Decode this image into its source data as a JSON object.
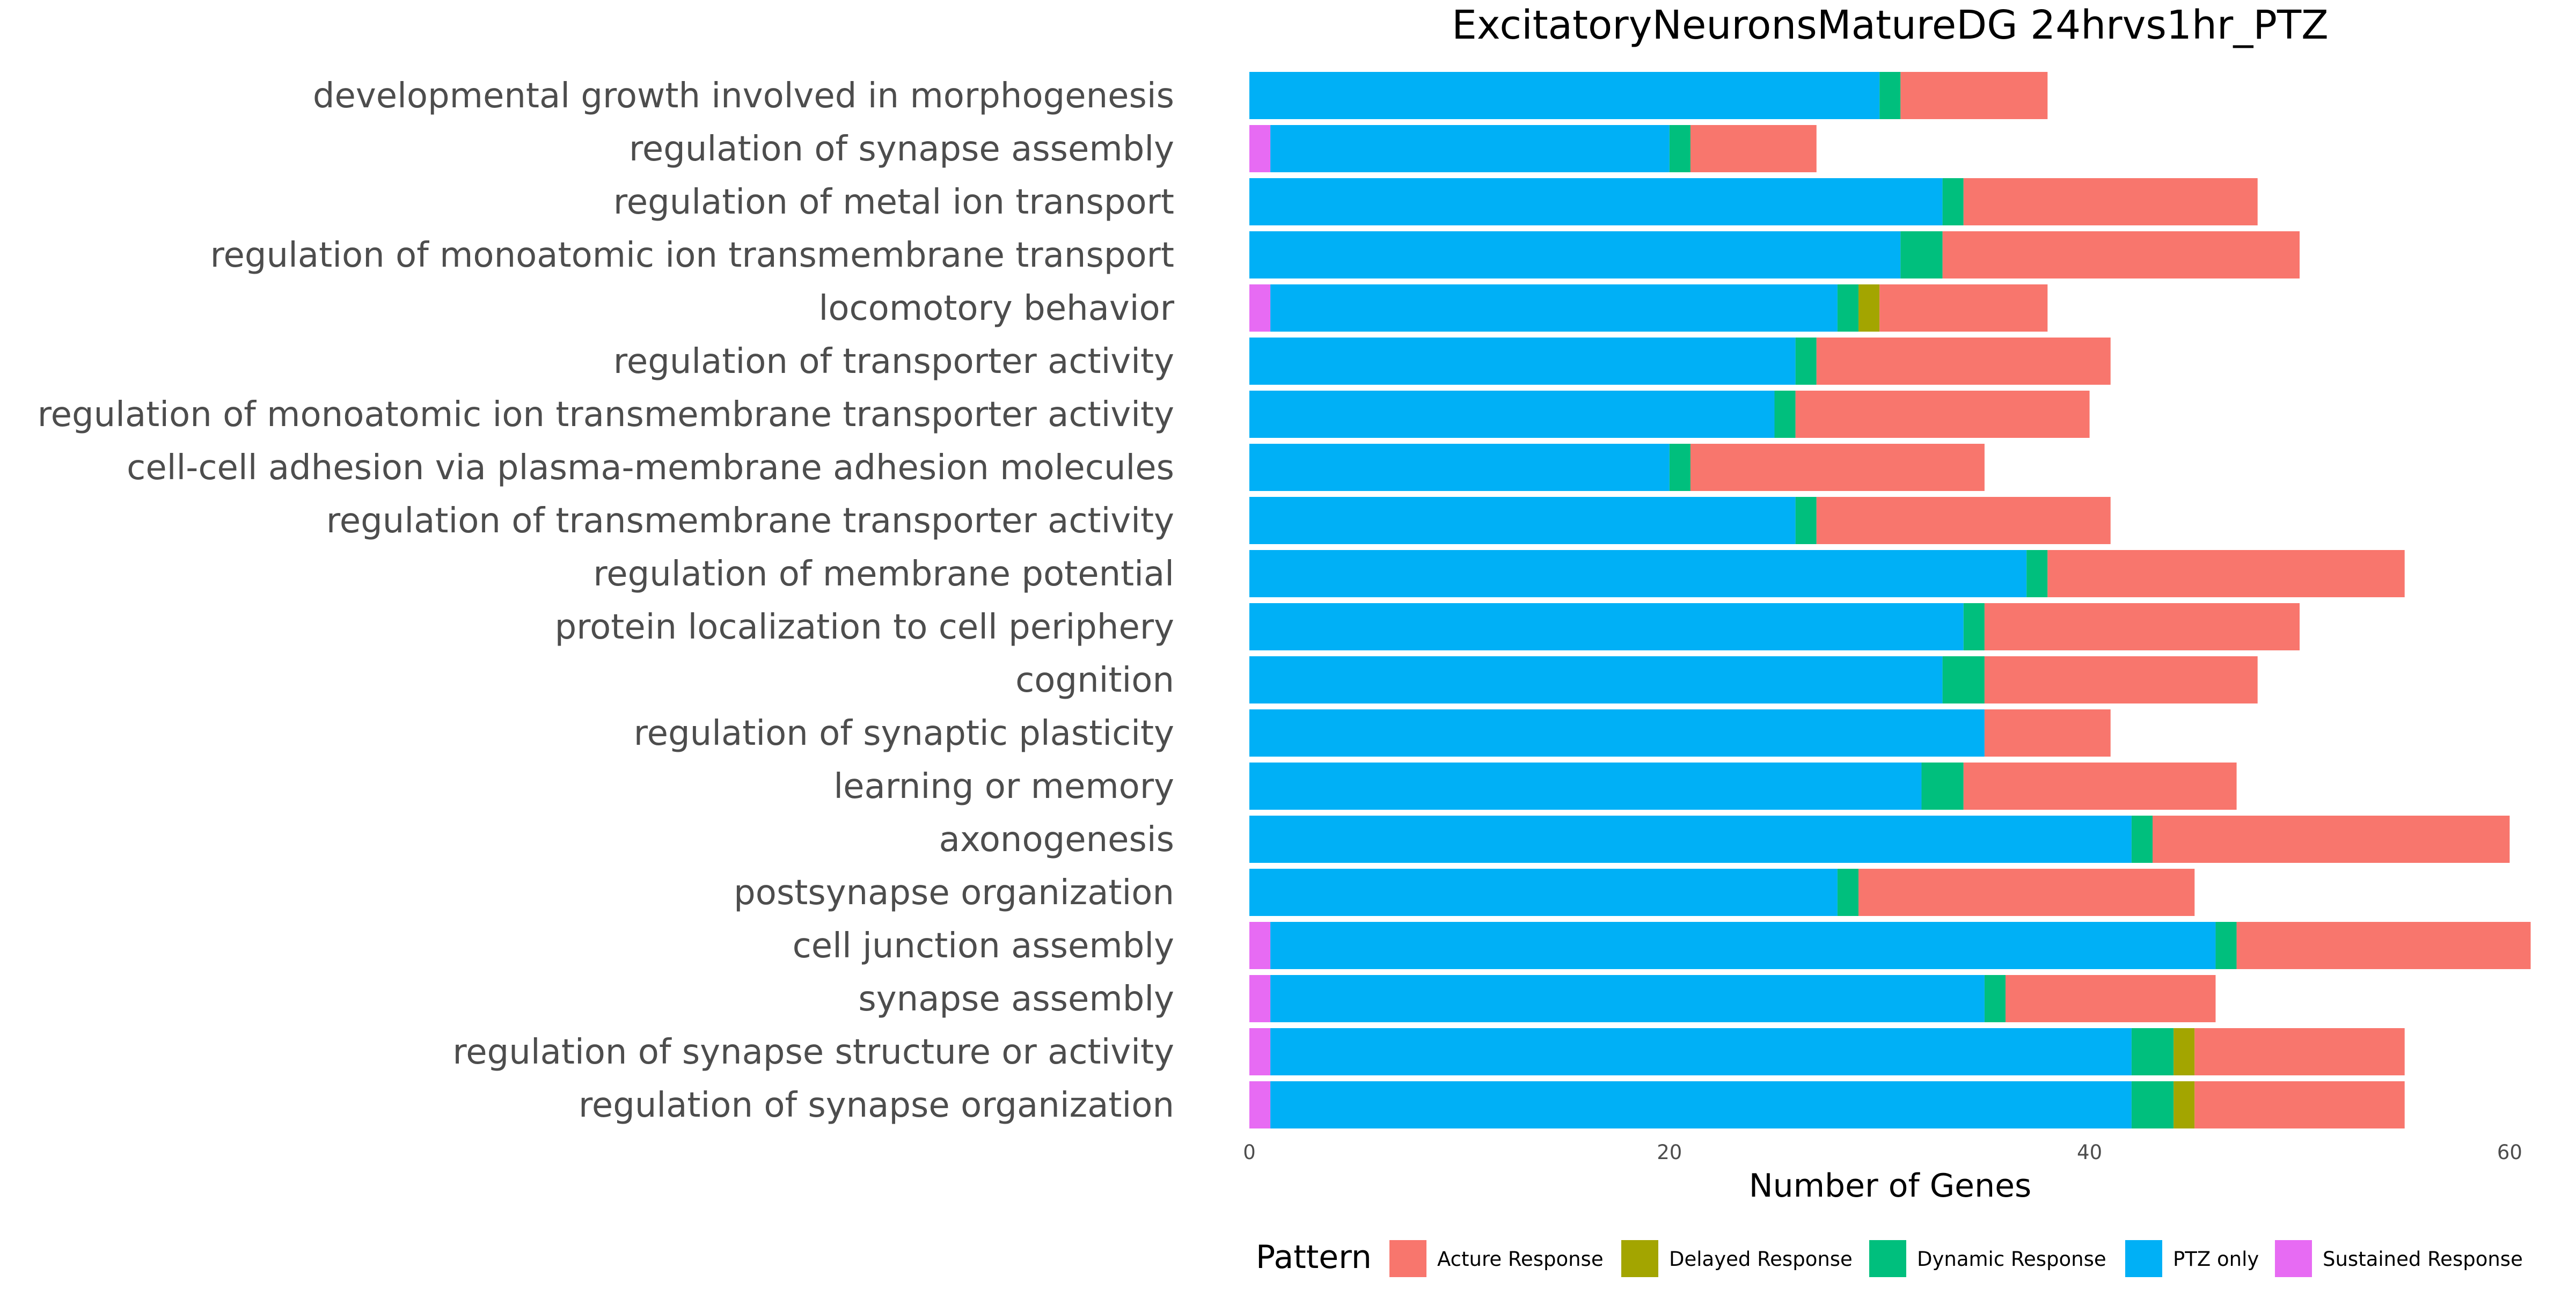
{
  "chart_data": {
    "type": "bar",
    "orientation": "horizontal",
    "stacked": true,
    "title": "ExcitatoryNeuronsMatureDG 24hrvs1hr_PTZ",
    "xlabel": "Number of Genes",
    "ylabel": "",
    "xlim": [
      0,
      61
    ],
    "x_ticks": [
      0,
      20,
      40,
      60
    ],
    "grid": false,
    "legend_position": "bottom",
    "legend_title": "Pattern",
    "categories": [
      "developmental growth involved in morphogenesis",
      "regulation of synapse assembly",
      "regulation of metal ion transport",
      "regulation of monoatomic ion transmembrane transport",
      "locomotory behavior",
      "regulation of transporter activity",
      "regulation of monoatomic ion transmembrane transporter activity",
      "cell-cell adhesion via plasma-membrane adhesion molecules",
      "regulation of transmembrane transporter activity",
      "regulation of membrane potential",
      "protein localization to cell periphery",
      "cognition",
      "regulation of synaptic plasticity",
      "learning or memory",
      "axonogenesis",
      "postsynapse organization",
      "cell junction assembly",
      "synapse assembly",
      "regulation of synapse structure or activity",
      "regulation of synapse organization"
    ],
    "stack_order": [
      "Sustained Response",
      "PTZ only",
      "Dynamic Response",
      "Delayed Response",
      "Acture Response"
    ],
    "legend_order": [
      "Acture Response",
      "Delayed Response",
      "Dynamic Response",
      "PTZ only",
      "Sustained Response"
    ],
    "series": [
      {
        "name": "Acture Response",
        "color": "#F8766D",
        "values": [
          7,
          6,
          14,
          17,
          8,
          14,
          14,
          14,
          14,
          17,
          15,
          13,
          6,
          13,
          17,
          16,
          14,
          10,
          10,
          10
        ]
      },
      {
        "name": "Delayed Response",
        "color": "#A3A500",
        "values": [
          0,
          0,
          0,
          0,
          1,
          0,
          0,
          0,
          0,
          0,
          0,
          0,
          0,
          0,
          0,
          0,
          0,
          0,
          1,
          1
        ]
      },
      {
        "name": "Dynamic Response",
        "color": "#00BF7D",
        "values": [
          1,
          1,
          1,
          2,
          1,
          1,
          1,
          1,
          1,
          1,
          1,
          2,
          0,
          2,
          1,
          1,
          1,
          1,
          2,
          2
        ]
      },
      {
        "name": "PTZ only",
        "color": "#00B0F6",
        "values": [
          30,
          19,
          33,
          31,
          27,
          26,
          25,
          20,
          26,
          37,
          34,
          33,
          35,
          32,
          42,
          28,
          45,
          34,
          41,
          41
        ]
      },
      {
        "name": "Sustained Response",
        "color": "#E76BF3",
        "values": [
          0,
          1,
          0,
          0,
          1,
          0,
          0,
          0,
          0,
          0,
          0,
          0,
          0,
          0,
          0,
          0,
          1,
          1,
          1,
          1
        ]
      }
    ]
  }
}
